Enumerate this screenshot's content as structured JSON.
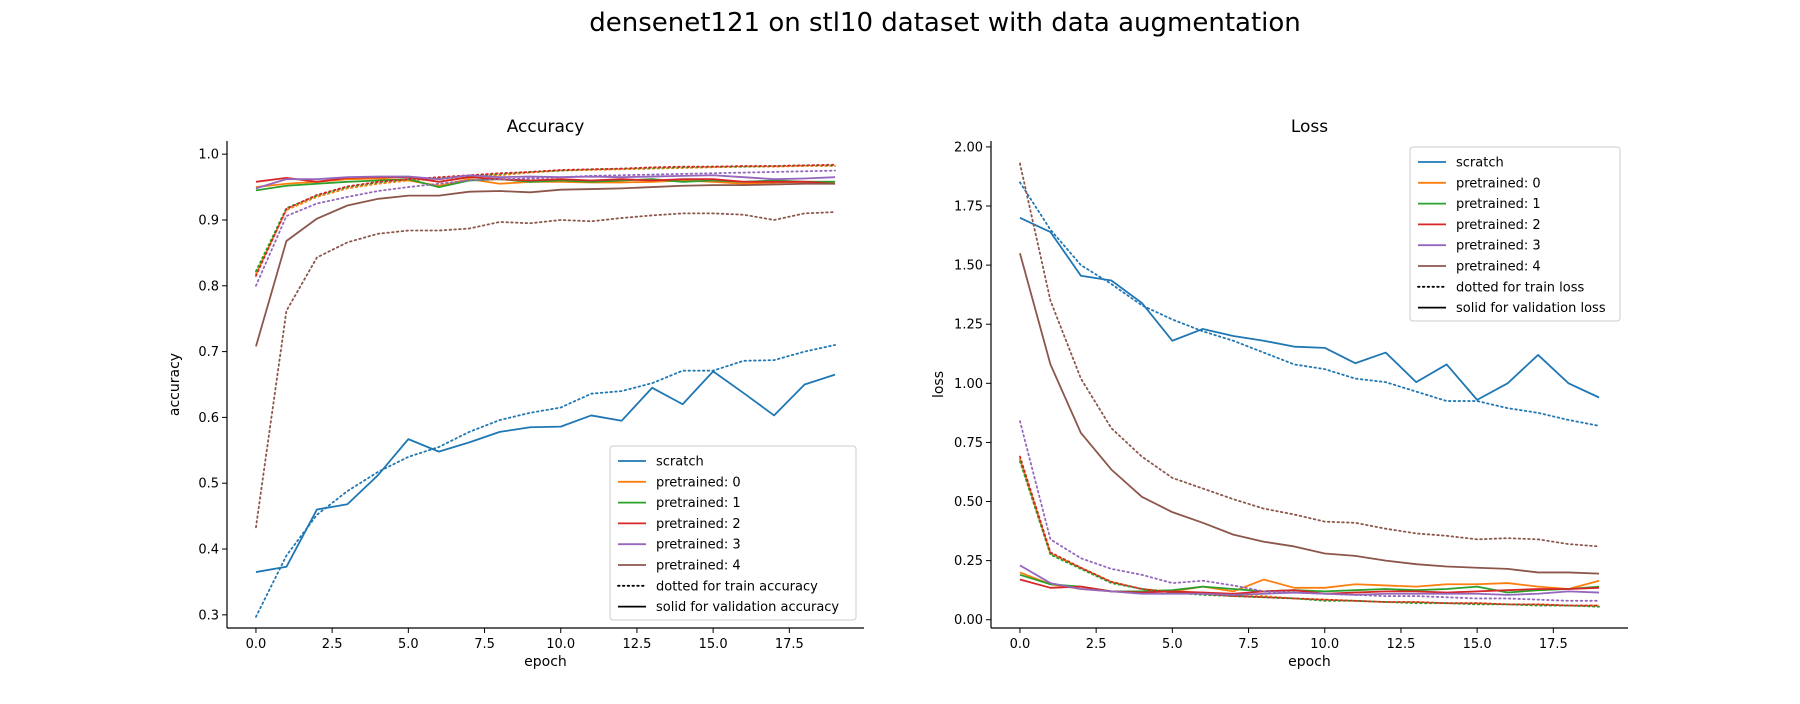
{
  "figure": {
    "suptitle": "densenet121 on stl10 dataset with data augmentation"
  },
  "colors": {
    "scratch": "#1f77b4",
    "pretrained_0": "#ff7f0e",
    "pretrained_1": "#2ca02c",
    "pretrained_2": "#d62728",
    "pretrained_3": "#9467bd",
    "pretrained_4": "#8c564b"
  },
  "chart_data": [
    {
      "type": "line",
      "title": "Accuracy",
      "xlabel": "epoch",
      "ylabel": "accuracy",
      "xlim": [
        -0.95,
        19.95
      ],
      "ylim": [
        0.28,
        1.02
      ],
      "xticks": [
        0.0,
        2.5,
        5.0,
        7.5,
        10.0,
        12.5,
        15.0,
        17.5
      ],
      "xtick_labels": [
        "0.0",
        "2.5",
        "5.0",
        "7.5",
        "10.0",
        "12.5",
        "15.0",
        "17.5"
      ],
      "yticks": [
        0.3,
        0.4,
        0.5,
        0.6,
        0.7,
        0.8,
        0.9,
        1.0
      ],
      "ytick_labels": [
        "0.3",
        "0.4",
        "0.5",
        "0.6",
        "0.7",
        "0.8",
        "0.9",
        "1.0"
      ],
      "legend_position": "lower-right",
      "legend": [
        {
          "label": "scratch",
          "color": "#1f77b4",
          "style": "solid"
        },
        {
          "label": "pretrained: 0",
          "color": "#ff7f0e",
          "style": "solid"
        },
        {
          "label": "pretrained: 1",
          "color": "#2ca02c",
          "style": "solid"
        },
        {
          "label": "pretrained: 2",
          "color": "#d62728",
          "style": "solid"
        },
        {
          "label": "pretrained: 3",
          "color": "#9467bd",
          "style": "solid"
        },
        {
          "label": "pretrained: 4",
          "color": "#8c564b",
          "style": "solid"
        },
        {
          "label": "dotted for train accuracy",
          "color": "#000000",
          "style": "dotted"
        },
        {
          "label": "solid for validation accuracy",
          "color": "#000000",
          "style": "solid"
        }
      ],
      "x": [
        0,
        1,
        2,
        3,
        4,
        5,
        6,
        7,
        8,
        9,
        10,
        11,
        12,
        13,
        14,
        15,
        16,
        17,
        18,
        19
      ],
      "series": [
        {
          "name": "scratch",
          "split": "validation",
          "color": "#1f77b4",
          "style": "solid",
          "values": [
            0.365,
            0.373,
            0.46,
            0.468,
            0.512,
            0.567,
            0.548,
            0.562,
            0.578,
            0.585,
            0.586,
            0.603,
            0.595,
            0.645,
            0.62,
            0.67,
            0.637,
            0.603,
            0.65,
            0.665
          ]
        },
        {
          "name": "scratch",
          "split": "train",
          "color": "#1f77b4",
          "style": "dotted",
          "values": [
            0.297,
            0.39,
            0.452,
            0.488,
            0.517,
            0.54,
            0.555,
            0.578,
            0.596,
            0.607,
            0.615,
            0.636,
            0.64,
            0.652,
            0.671,
            0.671,
            0.686,
            0.687,
            0.7,
            0.71
          ]
        },
        {
          "name": "pretrained: 0",
          "split": "validation",
          "color": "#ff7f0e",
          "style": "solid",
          "values": [
            0.95,
            0.955,
            0.958,
            0.962,
            0.963,
            0.96,
            0.952,
            0.962,
            0.955,
            0.958,
            0.958,
            0.957,
            0.957,
            0.958,
            0.96,
            0.958,
            0.955,
            0.957,
            0.958,
            0.958
          ]
        },
        {
          "name": "pretrained: 0",
          "split": "train",
          "color": "#ff7f0e",
          "style": "dotted",
          "values": [
            0.818,
            0.915,
            0.935,
            0.948,
            0.955,
            0.96,
            0.962,
            0.966,
            0.968,
            0.972,
            0.975,
            0.976,
            0.977,
            0.978,
            0.979,
            0.98,
            0.981,
            0.981,
            0.982,
            0.982
          ]
        },
        {
          "name": "pretrained: 1",
          "split": "validation",
          "color": "#2ca02c",
          "style": "solid",
          "values": [
            0.945,
            0.952,
            0.955,
            0.958,
            0.96,
            0.962,
            0.95,
            0.96,
            0.962,
            0.958,
            0.96,
            0.958,
            0.96,
            0.962,
            0.958,
            0.96,
            0.958,
            0.96,
            0.958,
            0.958
          ]
        },
        {
          "name": "pretrained: 1",
          "split": "train",
          "color": "#2ca02c",
          "style": "dotted",
          "values": [
            0.822,
            0.918,
            0.937,
            0.95,
            0.957,
            0.962,
            0.964,
            0.967,
            0.97,
            0.973,
            0.975,
            0.977,
            0.978,
            0.979,
            0.98,
            0.981,
            0.981,
            0.982,
            0.983,
            0.983
          ]
        },
        {
          "name": "pretrained: 2",
          "split": "validation",
          "color": "#d62728",
          "style": "solid",
          "values": [
            0.958,
            0.964,
            0.958,
            0.964,
            0.965,
            0.965,
            0.958,
            0.965,
            0.962,
            0.96,
            0.962,
            0.96,
            0.962,
            0.96,
            0.962,
            0.962,
            0.958,
            0.958,
            0.958,
            0.955
          ]
        },
        {
          "name": "pretrained: 2",
          "split": "train",
          "color": "#d62728",
          "style": "dotted",
          "values": [
            0.815,
            0.917,
            0.938,
            0.951,
            0.958,
            0.962,
            0.965,
            0.968,
            0.971,
            0.973,
            0.976,
            0.977,
            0.978,
            0.98,
            0.981,
            0.981,
            0.982,
            0.982,
            0.983,
            0.984
          ]
        },
        {
          "name": "pretrained: 3",
          "split": "validation",
          "color": "#9467bd",
          "style": "solid",
          "values": [
            0.948,
            0.962,
            0.962,
            0.965,
            0.966,
            0.966,
            0.962,
            0.968,
            0.965,
            0.966,
            0.965,
            0.966,
            0.965,
            0.966,
            0.967,
            0.968,
            0.965,
            0.962,
            0.963,
            0.965
          ]
        },
        {
          "name": "pretrained: 3",
          "split": "train",
          "color": "#9467bd",
          "style": "dotted",
          "values": [
            0.8,
            0.906,
            0.925,
            0.935,
            0.944,
            0.95,
            0.955,
            0.96,
            0.962,
            0.963,
            0.965,
            0.967,
            0.968,
            0.969,
            0.97,
            0.971,
            0.972,
            0.973,
            0.974,
            0.975
          ]
        },
        {
          "name": "pretrained: 4",
          "split": "validation",
          "color": "#8c564b",
          "style": "solid",
          "values": [
            0.708,
            0.868,
            0.902,
            0.922,
            0.932,
            0.937,
            0.937,
            0.943,
            0.944,
            0.942,
            0.946,
            0.947,
            0.948,
            0.95,
            0.952,
            0.953,
            0.953,
            0.954,
            0.955,
            0.955
          ]
        },
        {
          "name": "pretrained: 4",
          "split": "train",
          "color": "#8c564b",
          "style": "dotted",
          "values": [
            0.433,
            0.762,
            0.843,
            0.866,
            0.879,
            0.884,
            0.884,
            0.887,
            0.897,
            0.895,
            0.9,
            0.898,
            0.903,
            0.907,
            0.91,
            0.91,
            0.908,
            0.9,
            0.91,
            0.912
          ]
        }
      ]
    },
    {
      "type": "line",
      "title": "Loss",
      "xlabel": "epoch",
      "ylabel": "loss",
      "xlim": [
        -0.95,
        19.95
      ],
      "ylim": [
        -0.035,
        2.025
      ],
      "xticks": [
        0.0,
        2.5,
        5.0,
        7.5,
        10.0,
        12.5,
        15.0,
        17.5
      ],
      "xtick_labels": [
        "0.0",
        "2.5",
        "5.0",
        "7.5",
        "10.0",
        "12.5",
        "15.0",
        "17.5"
      ],
      "yticks": [
        0.0,
        0.25,
        0.5,
        0.75,
        1.0,
        1.25,
        1.5,
        1.75,
        2.0
      ],
      "ytick_labels": [
        "0.00",
        "0.25",
        "0.50",
        "0.75",
        "1.00",
        "1.25",
        "1.50",
        "1.75",
        "2.00"
      ],
      "legend_position": "upper-right",
      "legend": [
        {
          "label": "scratch",
          "color": "#1f77b4",
          "style": "solid"
        },
        {
          "label": "pretrained: 0",
          "color": "#ff7f0e",
          "style": "solid"
        },
        {
          "label": "pretrained: 1",
          "color": "#2ca02c",
          "style": "solid"
        },
        {
          "label": "pretrained: 2",
          "color": "#d62728",
          "style": "solid"
        },
        {
          "label": "pretrained: 3",
          "color": "#9467bd",
          "style": "solid"
        },
        {
          "label": "pretrained: 4",
          "color": "#8c564b",
          "style": "solid"
        },
        {
          "label": "dotted for train loss",
          "color": "#000000",
          "style": "dotted"
        },
        {
          "label": "solid for validation loss",
          "color": "#000000",
          "style": "solid"
        }
      ],
      "x": [
        0,
        1,
        2,
        3,
        4,
        5,
        6,
        7,
        8,
        9,
        10,
        11,
        12,
        13,
        14,
        15,
        16,
        17,
        18,
        19
      ],
      "series": [
        {
          "name": "scratch",
          "split": "validation",
          "color": "#1f77b4",
          "style": "solid",
          "values": [
            1.7,
            1.64,
            1.455,
            1.435,
            1.34,
            1.18,
            1.23,
            1.2,
            1.18,
            1.155,
            1.15,
            1.085,
            1.13,
            1.005,
            1.08,
            0.93,
            1.0,
            1.12,
            1.0,
            0.94
          ]
        },
        {
          "name": "scratch",
          "split": "train",
          "color": "#1f77b4",
          "style": "dotted",
          "values": [
            1.85,
            1.65,
            1.5,
            1.42,
            1.33,
            1.27,
            1.22,
            1.18,
            1.13,
            1.08,
            1.06,
            1.02,
            1.005,
            0.965,
            0.925,
            0.925,
            0.895,
            0.875,
            0.845,
            0.82
          ]
        },
        {
          "name": "pretrained: 0",
          "split": "validation",
          "color": "#ff7f0e",
          "style": "solid",
          "values": [
            0.2,
            0.15,
            0.13,
            0.12,
            0.12,
            0.12,
            0.14,
            0.12,
            0.17,
            0.135,
            0.135,
            0.15,
            0.145,
            0.14,
            0.15,
            0.15,
            0.155,
            0.14,
            0.13,
            0.165
          ]
        },
        {
          "name": "pretrained: 0",
          "split": "train",
          "color": "#ff7f0e",
          "style": "dotted",
          "values": [
            0.68,
            0.28,
            0.22,
            0.16,
            0.13,
            0.12,
            0.11,
            0.1,
            0.1,
            0.09,
            0.085,
            0.08,
            0.075,
            0.075,
            0.07,
            0.07,
            0.065,
            0.065,
            0.06,
            0.06
          ]
        },
        {
          "name": "pretrained: 1",
          "split": "validation",
          "color": "#2ca02c",
          "style": "solid",
          "values": [
            0.19,
            0.15,
            0.14,
            0.12,
            0.12,
            0.125,
            0.14,
            0.13,
            0.12,
            0.125,
            0.12,
            0.125,
            0.13,
            0.125,
            0.13,
            0.14,
            0.115,
            0.125,
            0.13,
            0.14
          ]
        },
        {
          "name": "pretrained: 1",
          "split": "train",
          "color": "#2ca02c",
          "style": "dotted",
          "values": [
            0.67,
            0.275,
            0.215,
            0.155,
            0.13,
            0.115,
            0.105,
            0.1,
            0.095,
            0.09,
            0.08,
            0.08,
            0.075,
            0.07,
            0.07,
            0.065,
            0.065,
            0.06,
            0.06,
            0.055
          ]
        },
        {
          "name": "pretrained: 2",
          "split": "validation",
          "color": "#d62728",
          "style": "solid",
          "values": [
            0.17,
            0.135,
            0.14,
            0.12,
            0.115,
            0.12,
            0.115,
            0.11,
            0.12,
            0.125,
            0.11,
            0.115,
            0.12,
            0.12,
            0.115,
            0.12,
            0.125,
            0.13,
            0.13,
            0.135
          ]
        },
        {
          "name": "pretrained: 2",
          "split": "train",
          "color": "#d62728",
          "style": "dotted",
          "values": [
            0.69,
            0.285,
            0.22,
            0.16,
            0.13,
            0.115,
            0.11,
            0.1,
            0.095,
            0.09,
            0.085,
            0.08,
            0.075,
            0.075,
            0.07,
            0.07,
            0.065,
            0.065,
            0.06,
            0.06
          ]
        },
        {
          "name": "pretrained: 3",
          "split": "validation",
          "color": "#9467bd",
          "style": "solid",
          "values": [
            0.23,
            0.155,
            0.13,
            0.12,
            0.11,
            0.11,
            0.11,
            0.105,
            0.11,
            0.115,
            0.11,
            0.105,
            0.11,
            0.11,
            0.11,
            0.11,
            0.105,
            0.11,
            0.12,
            0.115
          ]
        },
        {
          "name": "pretrained: 3",
          "split": "train",
          "color": "#9467bd",
          "style": "dotted",
          "values": [
            0.84,
            0.34,
            0.26,
            0.215,
            0.19,
            0.155,
            0.165,
            0.145,
            0.12,
            0.115,
            0.11,
            0.105,
            0.1,
            0.1,
            0.095,
            0.09,
            0.09,
            0.085,
            0.08,
            0.08
          ]
        },
        {
          "name": "pretrained: 4",
          "split": "validation",
          "color": "#8c564b",
          "style": "solid",
          "values": [
            1.55,
            1.08,
            0.79,
            0.635,
            0.52,
            0.455,
            0.41,
            0.36,
            0.33,
            0.31,
            0.28,
            0.27,
            0.25,
            0.235,
            0.225,
            0.22,
            0.215,
            0.2,
            0.2,
            0.195
          ]
        },
        {
          "name": "pretrained: 4",
          "split": "train",
          "color": "#8c564b",
          "style": "dotted",
          "values": [
            1.93,
            1.35,
            1.02,
            0.81,
            0.69,
            0.6,
            0.555,
            0.51,
            0.47,
            0.445,
            0.415,
            0.41,
            0.385,
            0.365,
            0.355,
            0.34,
            0.345,
            0.34,
            0.32,
            0.31
          ]
        }
      ]
    }
  ]
}
